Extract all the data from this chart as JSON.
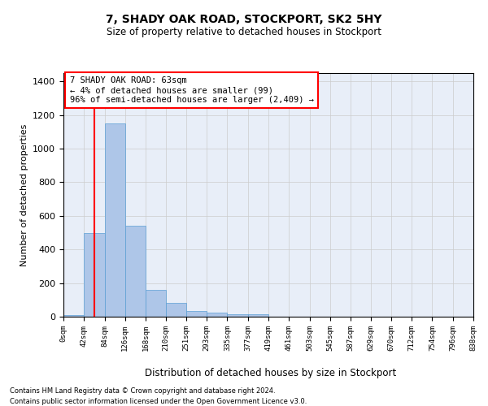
{
  "title_line1": "7, SHADY OAK ROAD, STOCKPORT, SK2 5HY",
  "title_line2": "Size of property relative to detached houses in Stockport",
  "xlabel": "Distribution of detached houses by size in Stockport",
  "ylabel": "Number of detached properties",
  "bar_values": [
    10,
    500,
    1150,
    540,
    160,
    80,
    35,
    25,
    15,
    15,
    0,
    0,
    0,
    0,
    0,
    0,
    0,
    0,
    0,
    0
  ],
  "bin_edges": [
    0,
    42,
    84,
    126,
    168,
    210,
    251,
    293,
    335,
    377,
    419,
    461,
    503,
    545,
    587,
    629,
    670,
    712,
    754,
    796,
    838
  ],
  "tick_labels": [
    "0sqm",
    "42sqm",
    "84sqm",
    "126sqm",
    "168sqm",
    "210sqm",
    "251sqm",
    "293sqm",
    "335sqm",
    "377sqm",
    "419sqm",
    "461sqm",
    "503sqm",
    "545sqm",
    "587sqm",
    "629sqm",
    "670sqm",
    "712sqm",
    "754sqm",
    "796sqm",
    "838sqm"
  ],
  "bar_color": "#aec6e8",
  "bar_edge_color": "#5a9fd4",
  "grid_color": "#cccccc",
  "background_color": "#e8eef8",
  "property_line_x": 63,
  "property_line_color": "red",
  "annotation_text": "7 SHADY OAK ROAD: 63sqm\n← 4% of detached houses are smaller (99)\n96% of semi-detached houses are larger (2,409) →",
  "annotation_box_color": "red",
  "ylim": [
    0,
    1450
  ],
  "yticks": [
    0,
    200,
    400,
    600,
    800,
    1000,
    1200,
    1400
  ],
  "footer_line1": "Contains HM Land Registry data © Crown copyright and database right 2024.",
  "footer_line2": "Contains public sector information licensed under the Open Government Licence v3.0."
}
